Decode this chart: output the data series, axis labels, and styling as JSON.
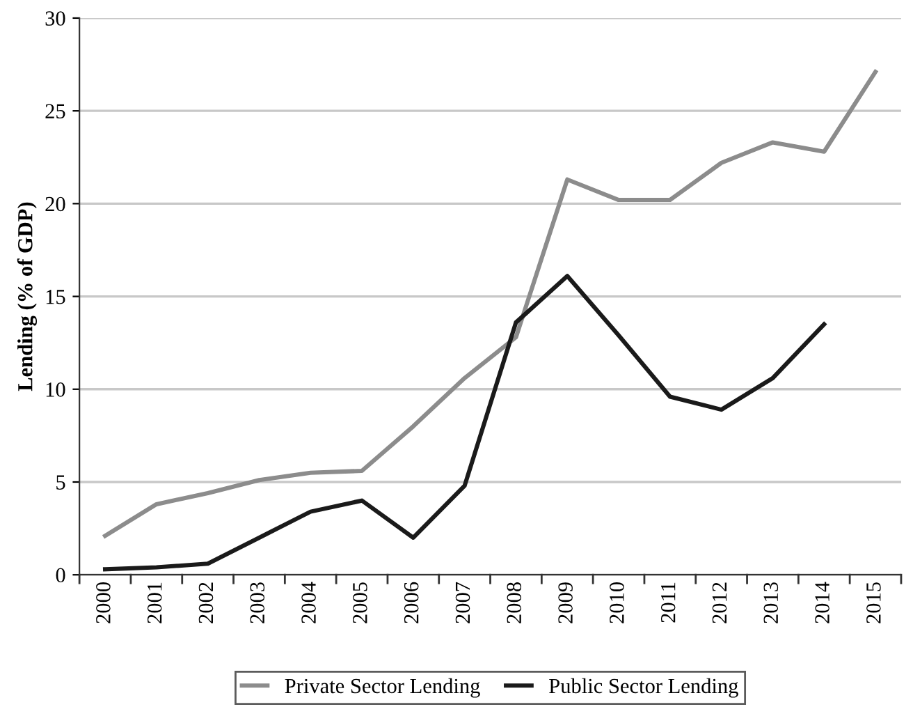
{
  "chart_data": {
    "type": "line",
    "ylabel": "Lending (% of GDP)",
    "categories": [
      "2000",
      "2001",
      "2002",
      "2003",
      "2004",
      "2005",
      "2006",
      "2007",
      "2008",
      "2009",
      "2010",
      "2011",
      "2012",
      "2013",
      "2014",
      "2015"
    ],
    "series": [
      {
        "name": "Private Sector Lending",
        "color": "#8c8c8c",
        "values": [
          2.1,
          3.8,
          4.4,
          5.1,
          5.5,
          5.6,
          8.0,
          10.6,
          12.8,
          21.3,
          20.2,
          20.2,
          22.2,
          23.3,
          22.8,
          27.1
        ]
      },
      {
        "name": "Public Sector Lending",
        "color": "#1a1a1a",
        "values": [
          0.3,
          0.4,
          0.6,
          2.0,
          3.4,
          4.0,
          2.0,
          4.8,
          13.6,
          16.1,
          12.9,
          9.6,
          8.9,
          10.6,
          13.5,
          null
        ]
      }
    ],
    "ylim": [
      0,
      30
    ],
    "yticks": [
      0,
      5,
      10,
      15,
      20,
      25,
      30
    ],
    "grid": "y",
    "legend": "bottom",
    "marker": "none",
    "line_style": "solid"
  }
}
